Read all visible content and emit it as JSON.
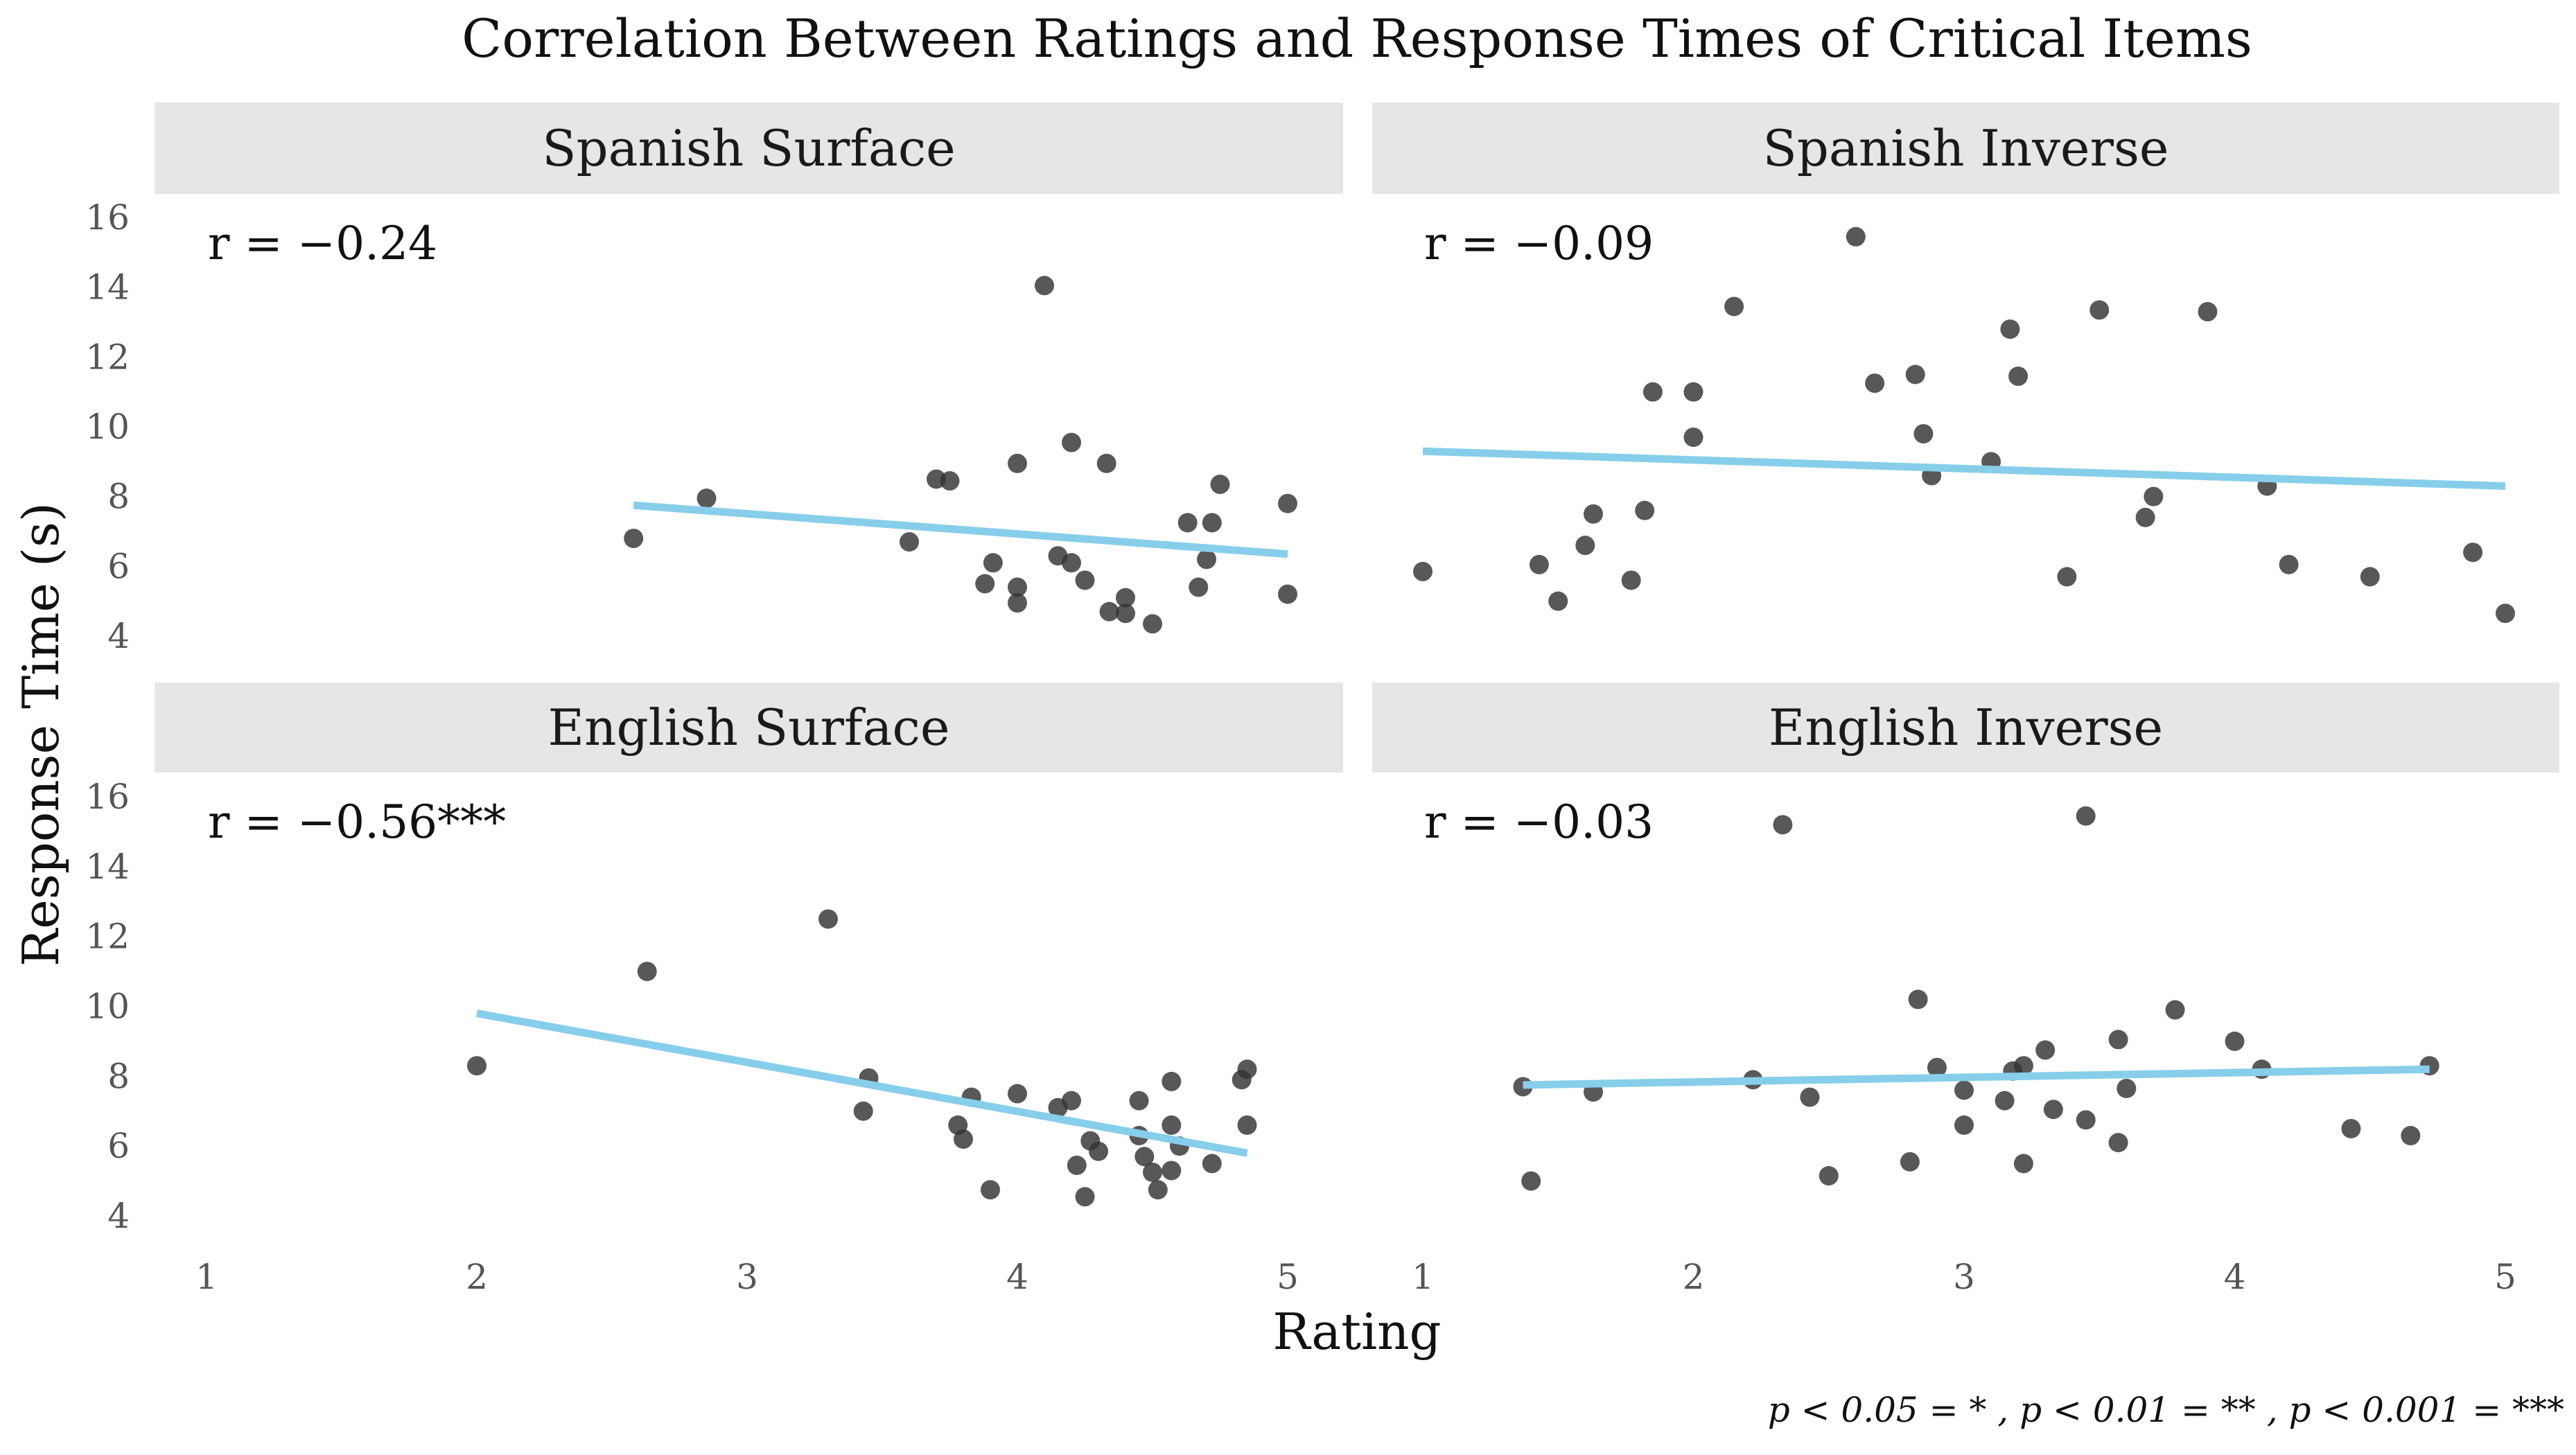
{
  "chart_data": {
    "type": "scatter",
    "title": "Correlation Between Ratings and Response Times of Critical Items",
    "xlabel": "Rating",
    "ylabel": "Response Time (s)",
    "xlim": [
      1,
      5
    ],
    "ylim": [
      4,
      16
    ],
    "xticks": [
      1,
      2,
      3,
      4,
      5
    ],
    "yticks": [
      4,
      6,
      8,
      10,
      12,
      14,
      16
    ],
    "grid": false,
    "point_color": "#333333",
    "line_color": "#87CEEB",
    "strip_color": "#e6e6e6",
    "footnote": "p < 0.05 = * ,  p < 0.01 = ** ,  p < 0.001 = ***",
    "panels": [
      {
        "name": "Spanish Surface",
        "r_label": "r = −0.24",
        "fit": {
          "x": [
            2.58,
            5.0
          ],
          "y": [
            7.75,
            6.35
          ]
        },
        "points": [
          [
            2.58,
            6.8
          ],
          [
            2.85,
            7.95
          ],
          [
            3.6,
            6.7
          ],
          [
            3.7,
            8.5
          ],
          [
            3.75,
            8.45
          ],
          [
            3.88,
            5.5
          ],
          [
            3.91,
            6.1
          ],
          [
            4.0,
            8.95
          ],
          [
            4.0,
            5.4
          ],
          [
            4.0,
            4.95
          ],
          [
            4.1,
            14.05
          ],
          [
            4.15,
            6.3
          ],
          [
            4.2,
            9.55
          ],
          [
            4.2,
            6.1
          ],
          [
            4.25,
            5.6
          ],
          [
            4.33,
            8.95
          ],
          [
            4.34,
            4.7
          ],
          [
            4.4,
            5.1
          ],
          [
            4.4,
            4.65
          ],
          [
            4.5,
            4.35
          ],
          [
            4.63,
            7.25
          ],
          [
            4.67,
            5.4
          ],
          [
            4.7,
            6.2
          ],
          [
            4.72,
            7.25
          ],
          [
            4.75,
            8.35
          ],
          [
            5.0,
            7.8
          ],
          [
            5.0,
            5.2
          ]
        ]
      },
      {
        "name": "Spanish Inverse",
        "r_label": "r = −0.09",
        "fit": {
          "x": [
            1.0,
            5.0
          ],
          "y": [
            9.3,
            8.3
          ]
        },
        "points": [
          [
            1.0,
            5.85
          ],
          [
            1.43,
            6.05
          ],
          [
            1.5,
            5.0
          ],
          [
            1.6,
            6.6
          ],
          [
            1.63,
            7.5
          ],
          [
            1.77,
            5.6
          ],
          [
            1.82,
            7.6
          ],
          [
            1.85,
            11.0
          ],
          [
            2.0,
            11.0
          ],
          [
            2.0,
            9.7
          ],
          [
            2.15,
            13.45
          ],
          [
            2.6,
            15.45
          ],
          [
            2.67,
            11.25
          ],
          [
            2.82,
            11.5
          ],
          [
            2.85,
            9.8
          ],
          [
            2.88,
            8.6
          ],
          [
            3.1,
            9.0
          ],
          [
            3.17,
            12.8
          ],
          [
            3.2,
            11.45
          ],
          [
            3.38,
            5.7
          ],
          [
            3.5,
            13.35
          ],
          [
            3.67,
            7.4
          ],
          [
            3.7,
            8.0
          ],
          [
            3.9,
            13.3
          ],
          [
            4.12,
            8.3
          ],
          [
            4.2,
            6.05
          ],
          [
            4.5,
            5.7
          ],
          [
            4.88,
            6.4
          ],
          [
            5.0,
            4.65
          ]
        ]
      },
      {
        "name": "English Surface",
        "r_label": "r = −0.56***",
        "fit": {
          "x": [
            2.0,
            4.85
          ],
          "y": [
            9.8,
            5.8
          ]
        },
        "points": [
          [
            2.0,
            8.3
          ],
          [
            2.63,
            11.0
          ],
          [
            3.3,
            12.5
          ],
          [
            3.43,
            7.0
          ],
          [
            3.45,
            7.95
          ],
          [
            3.78,
            6.6
          ],
          [
            3.8,
            6.2
          ],
          [
            3.83,
            7.4
          ],
          [
            3.9,
            4.75
          ],
          [
            4.0,
            7.5
          ],
          [
            4.15,
            7.1
          ],
          [
            4.2,
            7.3
          ],
          [
            4.22,
            5.45
          ],
          [
            4.25,
            4.55
          ],
          [
            4.27,
            6.15
          ],
          [
            4.3,
            5.85
          ],
          [
            4.45,
            7.3
          ],
          [
            4.45,
            6.3
          ],
          [
            4.47,
            5.7
          ],
          [
            4.5,
            5.25
          ],
          [
            4.52,
            4.75
          ],
          [
            4.57,
            7.85
          ],
          [
            4.57,
            6.6
          ],
          [
            4.57,
            5.3
          ],
          [
            4.6,
            6.0
          ],
          [
            4.72,
            5.5
          ],
          [
            4.83,
            7.9
          ],
          [
            4.85,
            8.2
          ],
          [
            4.85,
            6.6
          ]
        ]
      },
      {
        "name": "English Inverse",
        "r_label": "r = −0.03",
        "fit": {
          "x": [
            1.37,
            4.72
          ],
          "y": [
            7.75,
            8.2
          ]
        },
        "points": [
          [
            1.37,
            7.7
          ],
          [
            1.4,
            5.0
          ],
          [
            1.63,
            7.55
          ],
          [
            2.22,
            7.9
          ],
          [
            2.33,
            15.2
          ],
          [
            2.43,
            7.4
          ],
          [
            2.5,
            5.15
          ],
          [
            2.8,
            5.55
          ],
          [
            2.83,
            10.2
          ],
          [
            2.9,
            8.25
          ],
          [
            3.0,
            7.6
          ],
          [
            3.0,
            6.6
          ],
          [
            3.15,
            7.3
          ],
          [
            3.18,
            8.15
          ],
          [
            3.22,
            8.3
          ],
          [
            3.22,
            5.5
          ],
          [
            3.3,
            8.75
          ],
          [
            3.33,
            7.05
          ],
          [
            3.45,
            6.75
          ],
          [
            3.45,
            15.45
          ],
          [
            3.57,
            9.05
          ],
          [
            3.57,
            6.1
          ],
          [
            3.6,
            7.65
          ],
          [
            3.78,
            9.9
          ],
          [
            4.0,
            9.0
          ],
          [
            4.1,
            8.2
          ],
          [
            4.43,
            6.5
          ],
          [
            4.65,
            6.3
          ],
          [
            4.72,
            8.3
          ]
        ]
      }
    ]
  }
}
